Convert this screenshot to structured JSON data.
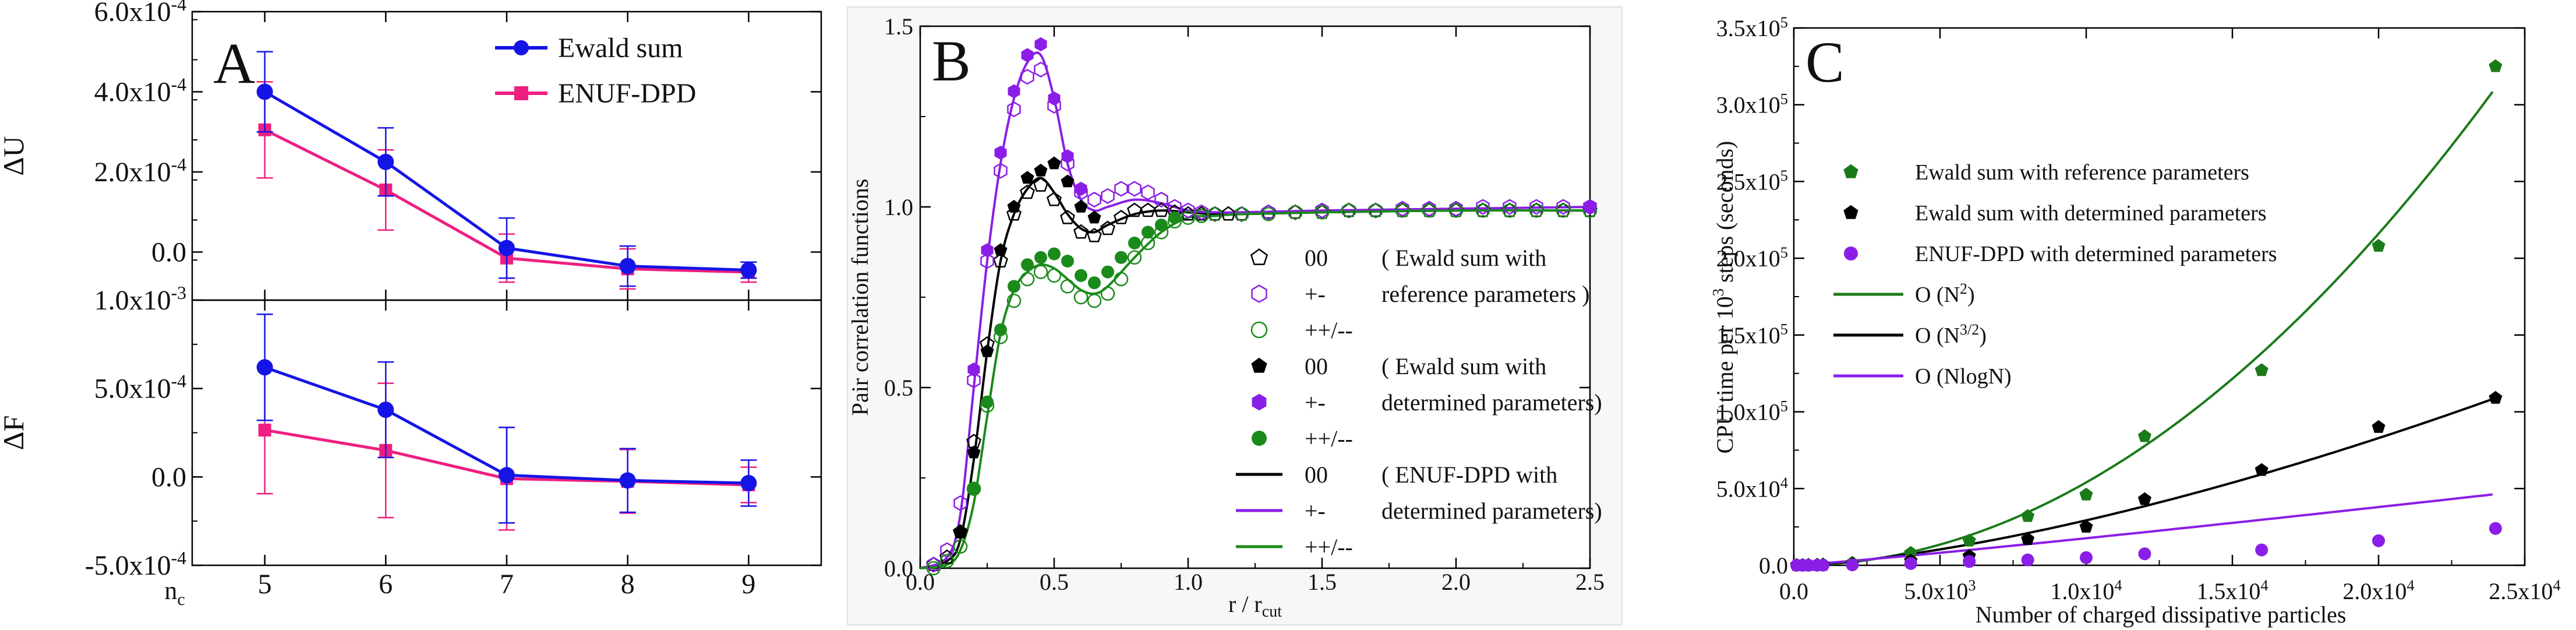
{
  "chart_data": [
    {
      "panel": "A",
      "type": "line",
      "subplots": [
        {
          "ylabel": "ΔU",
          "ylim": [
            -0.00012,
            0.0006
          ],
          "yticks": [
            {
              "value": 0.0006,
              "mant": "6.0x10",
              "exp": "-4"
            },
            {
              "value": 0.0004,
              "mant": "4.0x10",
              "exp": "-4"
            },
            {
              "value": 0.0002,
              "mant": "2.0x10",
              "exp": "-4"
            },
            {
              "value": 0.0,
              "mant": "0.0",
              "exp": ""
            }
          ],
          "series": [
            {
              "name": "Ewald sum",
              "color": "#1414e6",
              "marker": "circle",
              "x": [
                5,
                6,
                7,
                8,
                9
              ],
              "y": [
                0.0004,
                0.000225,
                1e-05,
                -3.5e-05,
                -4.5e-05
              ],
              "err": [
                0.0001,
                8.5e-05,
                7.5e-05,
                5e-05,
                2e-05
              ]
            },
            {
              "name": "ENUF-DPD",
              "color": "#ee1f80",
              "marker": "square",
              "x": [
                5,
                6,
                7,
                8,
                9
              ],
              "y": [
                0.000305,
                0.000155,
                -1.5e-05,
                -4.2e-05,
                -5e-05
              ],
              "err": [
                0.00012,
                0.0001,
                6e-05,
                5e-05,
                2.5e-05
              ]
            }
          ]
        },
        {
          "ylabel": "ΔF",
          "ylim": [
            -0.0005,
            0.001
          ],
          "yticks": [
            {
              "value": 0.001,
              "mant": "1.0x10",
              "exp": "-3"
            },
            {
              "value": 0.0005,
              "mant": "5.0x10",
              "exp": "-4"
            },
            {
              "value": 0.0,
              "mant": "0.0",
              "exp": ""
            },
            {
              "value": -0.0005,
              "mant": "-5.0x10",
              "exp": "-4"
            }
          ],
          "series": [
            {
              "name": "Ewald sum",
              "color": "#1414e6",
              "marker": "circle",
              "x": [
                5,
                6,
                7,
                8,
                9
              ],
              "y": [
                0.00062,
                0.00038,
                1e-05,
                -2e-05,
                -3.5e-05
              ],
              "err": [
                0.0003,
                0.00027,
                0.00027,
                0.00018,
                0.00013
              ]
            },
            {
              "name": "ENUF-DPD",
              "color": "#ee1f80",
              "marker": "square",
              "x": [
                5,
                6,
                7,
                8,
                9
              ],
              "y": [
                0.000265,
                0.00015,
                -1e-05,
                -2.5e-05,
                -4.5e-05
              ],
              "err": [
                0.00036,
                0.00038,
                0.00029,
                0.00018,
                0.0001
              ]
            }
          ]
        }
      ],
      "xlim": [
        4.4,
        9.6
      ],
      "xticks": [
        5,
        6,
        7,
        8,
        9
      ],
      "xlabel": "n",
      "xlabel_sub": "c",
      "legend": [
        "Ewald sum",
        "ENUF-DPD"
      ],
      "label": "A"
    },
    {
      "panel": "B",
      "type": "line",
      "xlim": [
        0,
        2.5
      ],
      "ylim": [
        0,
        1.5
      ],
      "xticks": [
        "0.0",
        "0.5",
        "1.0",
        "1.5",
        "2.0",
        "2.5"
      ],
      "yticks": [
        "0.0",
        "0.5",
        "1.0",
        "1.5"
      ],
      "xlabel": "r / r",
      "xlabel_sub": "cut",
      "ylabel": "Pair correlation functions",
      "label": "B",
      "curves": [
        {
          "name": "00",
          "color": "#000000",
          "x": [
            0.0,
            0.1,
            0.15,
            0.2,
            0.25,
            0.3,
            0.35,
            0.4,
            0.45,
            0.5,
            0.55,
            0.6,
            0.65,
            0.7,
            0.8,
            0.9,
            1.0,
            1.1,
            1.2,
            1.5,
            2.0,
            2.5
          ],
          "y": [
            0.0,
            0.02,
            0.08,
            0.3,
            0.6,
            0.85,
            0.98,
            1.05,
            1.08,
            1.04,
            0.98,
            0.94,
            0.93,
            0.95,
            0.98,
            0.99,
            0.985,
            0.98,
            0.98,
            0.985,
            0.99,
            0.99
          ]
        },
        {
          "name": "+-",
          "color": "#8a1ee6",
          "x": [
            0.0,
            0.1,
            0.15,
            0.2,
            0.25,
            0.3,
            0.35,
            0.4,
            0.45,
            0.5,
            0.55,
            0.6,
            0.65,
            0.7,
            0.8,
            0.9,
            1.0,
            1.1,
            1.2,
            1.5,
            2.0,
            2.5
          ],
          "y": [
            0.0,
            0.03,
            0.15,
            0.5,
            0.85,
            1.12,
            1.3,
            1.4,
            1.42,
            1.3,
            1.12,
            1.02,
            0.99,
            1.0,
            1.02,
            1.01,
            0.99,
            0.985,
            0.985,
            0.99,
            0.995,
            1.0
          ]
        },
        {
          "name": "++/--",
          "color": "#1a8a1a",
          "x": [
            0.0,
            0.1,
            0.15,
            0.2,
            0.25,
            0.3,
            0.35,
            0.4,
            0.45,
            0.5,
            0.55,
            0.6,
            0.65,
            0.7,
            0.8,
            0.9,
            1.0,
            1.1,
            1.2,
            1.5,
            2.0,
            2.5
          ],
          "y": [
            0.0,
            0.01,
            0.05,
            0.18,
            0.42,
            0.65,
            0.77,
            0.82,
            0.84,
            0.83,
            0.8,
            0.77,
            0.76,
            0.78,
            0.86,
            0.93,
            0.97,
            0.975,
            0.98,
            0.985,
            0.99,
            0.99
          ]
        }
      ],
      "points": [
        {
          "name": "00",
          "group": "reference",
          "color": "#000000",
          "marker": "pentagon",
          "filled": false,
          "x": [
            0.05,
            0.1,
            0.15,
            0.2,
            0.25,
            0.3,
            0.35,
            0.4,
            0.45,
            0.5,
            0.55,
            0.6,
            0.65,
            0.7,
            0.75,
            0.8,
            0.85,
            0.9,
            0.95,
            1.0,
            1.05,
            1.1,
            1.15,
            1.2,
            1.3,
            1.4,
            1.5,
            1.6,
            1.7,
            1.8,
            1.9,
            2.0,
            2.1,
            2.2,
            2.3,
            2.4,
            2.5
          ],
          "y": [
            0.01,
            0.03,
            0.1,
            0.35,
            0.62,
            0.85,
            0.98,
            1.04,
            1.06,
            1.02,
            0.97,
            0.93,
            0.92,
            0.94,
            0.97,
            0.99,
            0.99,
            0.99,
            0.985,
            0.98,
            0.98,
            0.98,
            0.98,
            0.98,
            0.985,
            0.985,
            0.985,
            0.99,
            0.99,
            0.99,
            0.99,
            0.99,
            0.99,
            0.99,
            0.99,
            0.99,
            0.99
          ]
        },
        {
          "name": "+-",
          "group": "reference",
          "color": "#8a1ee6",
          "marker": "hexagon",
          "filled": false,
          "x": [
            0.05,
            0.1,
            0.15,
            0.2,
            0.25,
            0.3,
            0.35,
            0.4,
            0.45,
            0.5,
            0.55,
            0.6,
            0.65,
            0.7,
            0.75,
            0.8,
            0.85,
            0.9,
            0.95,
            1.0,
            1.05,
            1.1,
            1.2,
            1.3,
            1.4,
            1.5,
            1.6,
            1.7,
            1.8,
            1.9,
            2.0,
            2.1,
            2.2,
            2.3,
            2.4,
            2.5
          ],
          "y": [
            0.01,
            0.05,
            0.18,
            0.52,
            0.85,
            1.1,
            1.27,
            1.36,
            1.38,
            1.28,
            1.12,
            1.04,
            1.02,
            1.03,
            1.05,
            1.05,
            1.04,
            1.02,
            1.0,
            0.99,
            0.985,
            0.98,
            0.98,
            0.985,
            0.985,
            0.99,
            0.99,
            0.99,
            0.995,
            0.995,
            0.995,
            1.0,
            1.0,
            1.0,
            1.0,
            1.0
          ]
        },
        {
          "name": "++/--",
          "group": "reference",
          "color": "#1a8a1a",
          "marker": "circle",
          "filled": false,
          "x": [
            0.05,
            0.1,
            0.15,
            0.2,
            0.25,
            0.3,
            0.35,
            0.4,
            0.45,
            0.5,
            0.55,
            0.6,
            0.65,
            0.7,
            0.75,
            0.8,
            0.85,
            0.9,
            0.95,
            1.0,
            1.05,
            1.1,
            1.2,
            1.3,
            1.4,
            1.5,
            1.6,
            1.7,
            1.8,
            1.9,
            2.0,
            2.1,
            2.2,
            2.3,
            2.4,
            2.5
          ],
          "y": [
            0.0,
            0.02,
            0.06,
            0.22,
            0.45,
            0.64,
            0.74,
            0.8,
            0.82,
            0.81,
            0.78,
            0.75,
            0.74,
            0.76,
            0.8,
            0.86,
            0.9,
            0.93,
            0.96,
            0.97,
            0.975,
            0.98,
            0.98,
            0.98,
            0.985,
            0.985,
            0.99,
            0.99,
            0.99,
            0.99,
            0.99,
            0.99,
            0.99,
            0.99,
            0.99,
            0.99
          ]
        },
        {
          "name": "00",
          "group": "determined",
          "color": "#000000",
          "marker": "pentagon",
          "filled": true,
          "x": [
            0.15,
            0.2,
            0.25,
            0.3,
            0.35,
            0.4,
            0.45,
            0.5,
            0.55,
            0.6,
            0.65
          ],
          "y": [
            0.1,
            0.32,
            0.6,
            0.88,
            1.0,
            1.08,
            1.1,
            1.12,
            1.07,
            1.0,
            0.97
          ]
        },
        {
          "name": "+-",
          "group": "determined",
          "color": "#8a1ee6",
          "marker": "hexagon",
          "filled": true,
          "x": [
            0.2,
            0.25,
            0.3,
            0.35,
            0.4,
            0.45,
            0.5,
            0.55,
            0.6,
            2.5
          ],
          "y": [
            0.55,
            0.88,
            1.15,
            1.32,
            1.42,
            1.45,
            1.3,
            1.14,
            1.05,
            1.0
          ]
        },
        {
          "name": "++/--",
          "group": "determined",
          "color": "#1a8a1a",
          "marker": "circle",
          "filled": true,
          "x": [
            0.2,
            0.25,
            0.3,
            0.35,
            0.4,
            0.45,
            0.5,
            0.55,
            0.6,
            0.65,
            0.7,
            0.75,
            0.8,
            0.85,
            0.9,
            0.95
          ],
          "y": [
            0.22,
            0.46,
            0.66,
            0.78,
            0.84,
            0.86,
            0.87,
            0.85,
            0.81,
            0.79,
            0.82,
            0.86,
            0.9,
            0.93,
            0.95,
            0.97
          ]
        }
      ],
      "legend": [
        {
          "symbol": "pentagon",
          "filled": false,
          "color": "#000000",
          "label": "00",
          "note": "( Ewald sum with"
        },
        {
          "symbol": "hexagon",
          "filled": false,
          "color": "#8a1ee6",
          "label": "+-",
          "note": "reference parameters )"
        },
        {
          "symbol": "circle",
          "filled": false,
          "color": "#1a8a1a",
          "label": "++/--",
          "note": ""
        },
        {
          "symbol": "pentagon",
          "filled": true,
          "color": "#000000",
          "label": "00",
          "note": "( Ewald sum with"
        },
        {
          "symbol": "hexagon",
          "filled": true,
          "color": "#8a1ee6",
          "label": "+-",
          "note": "determined parameters)"
        },
        {
          "symbol": "circle",
          "filled": true,
          "color": "#1a8a1a",
          "label": "++/--",
          "note": ""
        },
        {
          "symbol": "line",
          "filled": false,
          "color": "#000000",
          "label": "00",
          "note": "( ENUF-DPD with"
        },
        {
          "symbol": "line",
          "filled": false,
          "color": "#8a1ee6",
          "label": "+-",
          "note": "determined parameters)"
        },
        {
          "symbol": "line",
          "filled": false,
          "color": "#1a8a1a",
          "label": "++/--",
          "note": ""
        }
      ]
    },
    {
      "panel": "C",
      "type": "scatter",
      "xlim": [
        0,
        25000
      ],
      "ylim": [
        0,
        350000
      ],
      "xticks": [
        {
          "value": 0,
          "mant": "0.0",
          "exp": ""
        },
        {
          "value": 5000,
          "mant": "5.0x10",
          "exp": "3"
        },
        {
          "value": 10000,
          "mant": "1.0x10",
          "exp": "4"
        },
        {
          "value": 15000,
          "mant": "1.5x10",
          "exp": "4"
        },
        {
          "value": 20000,
          "mant": "2.0x10",
          "exp": "4"
        },
        {
          "value": 25000,
          "mant": "2.5x10",
          "exp": "4"
        }
      ],
      "yticks": [
        {
          "value": 0,
          "mant": "0.0",
          "exp": ""
        },
        {
          "value": 50000,
          "mant": "5.0x10",
          "exp": "4"
        },
        {
          "value": 100000,
          "mant": "1.0x10",
          "exp": "5"
        },
        {
          "value": 150000,
          "mant": "1.5x10",
          "exp": "5"
        },
        {
          "value": 200000,
          "mant": "2.0x10",
          "exp": "5"
        },
        {
          "value": 250000,
          "mant": "2.5x10",
          "exp": "5"
        },
        {
          "value": 300000,
          "mant": "3.0x10",
          "exp": "5"
        },
        {
          "value": 350000,
          "mant": "3.5x10",
          "exp": "5"
        }
      ],
      "xlabel": "Number of charged dissipative particles",
      "ylabel_parts": [
        "CPU time per 10",
        "3",
        " steps (seconds)"
      ],
      "label": "C",
      "series": [
        {
          "name": "Ewald sum with reference parameters",
          "color": "#1a7a1a",
          "marker": "pentagon",
          "x": [
            100,
            300,
            500,
            800,
            1000,
            2000,
            4000,
            6000,
            8000,
            10000,
            12000,
            16000,
            20000,
            24000
          ],
          "y": [
            50,
            100,
            200,
            300,
            500,
            1500,
            8000,
            16000,
            32000,
            46000,
            84000,
            127000,
            208000,
            325000
          ]
        },
        {
          "name": "Ewald sum with determined parameters",
          "color": "#000000",
          "marker": "pentagon",
          "x": [
            100,
            300,
            500,
            800,
            1000,
            2000,
            4000,
            6000,
            8000,
            10000,
            12000,
            16000,
            20000,
            24000
          ],
          "y": [
            20,
            50,
            100,
            150,
            200,
            800,
            3000,
            6000,
            17000,
            25000,
            43000,
            62000,
            90000,
            109000
          ]
        },
        {
          "name": "ENUF-DPD with determined parameters",
          "color": "#8a1ee6",
          "marker": "circle",
          "x": [
            100,
            300,
            500,
            800,
            1000,
            2000,
            4000,
            6000,
            8000,
            10000,
            12000,
            16000,
            20000,
            24000
          ],
          "y": [
            10,
            20,
            30,
            50,
            100,
            300,
            1200,
            2500,
            3500,
            5000,
            7500,
            10000,
            16000,
            24000
          ]
        }
      ],
      "fits": [
        {
          "name": "O (N",
          "sup": "2",
          "tail": ")",
          "color": "#1a7a1a",
          "power": 2,
          "coef": 0.00054
        },
        {
          "name": "O (N",
          "sup": "3/2",
          "tail": ")",
          "color": "#000000",
          "power": 1.5,
          "coef": 0.0293
        },
        {
          "name": "O (NlogN)",
          "sup": "",
          "tail": "",
          "color": "#8a1ee6",
          "power": "nlogn",
          "coef": 0.1915
        }
      ]
    }
  ]
}
